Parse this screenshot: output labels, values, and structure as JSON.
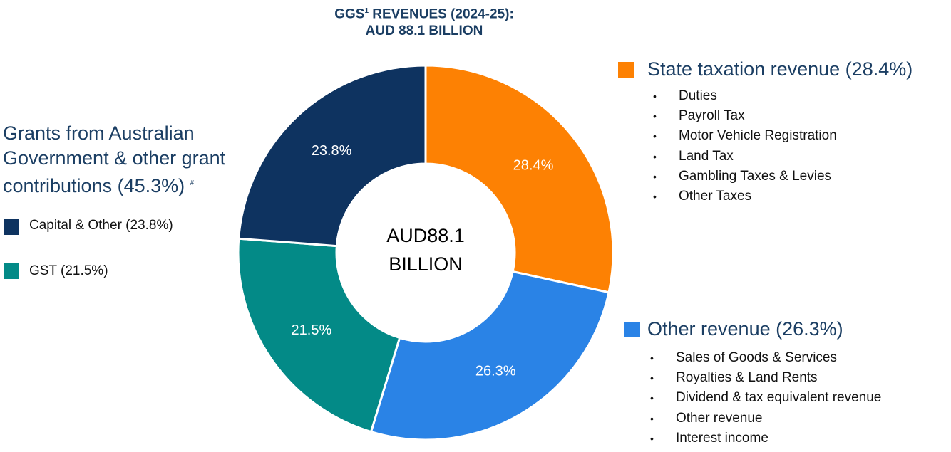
{
  "chart_data": {
    "type": "pie",
    "donut": true,
    "title": {
      "main": "GGS",
      "superscript": "1",
      "after": " REVENUES (2024-25):"
    },
    "subtitle": "AUD 88.1 BILLION",
    "center_label": [
      "AUD88.1",
      "BILLION"
    ],
    "categories": [
      "State taxation revenue (28.4%)",
      "Other revenue (26.3%)",
      "GST (21.5%)",
      "Capital & Other (23.8%)"
    ],
    "values": [
      28.4,
      26.3,
      21.5,
      23.8
    ],
    "value_labels": [
      "28.4%",
      "26.3%",
      "21.5%",
      "23.8%"
    ],
    "colors": [
      "#fd8103",
      "#2a83e6",
      "#038a87",
      "#0e3360"
    ],
    "details": {
      "state_taxation": [
        "Duties",
        "Payroll Tax",
        "Motor Vehicle Registration",
        "Land Tax",
        "Gambling Taxes & Levies",
        "Other Taxes"
      ],
      "other_revenue": [
        "Sales of Goods & Services",
        "Royalties & Land Rents",
        "Dividend & tax equivalent revenue",
        "Other revenue",
        "Interest income"
      ]
    },
    "grants_heading": {
      "text": "Grants from Australian Government & other grant contributions (45.3%)",
      "superscript": "#"
    }
  }
}
